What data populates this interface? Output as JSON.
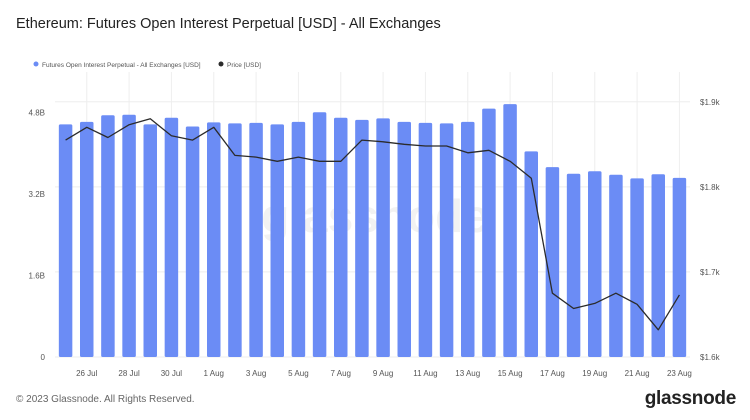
{
  "title": "Ethereum: Futures Open Interest Perpetual [USD] - All Exchanges",
  "footer": {
    "copyright": "© 2023 Glassnode. All Rights Reserved.",
    "brand": "glassnode"
  },
  "watermark": "glassnode",
  "colors": {
    "bars": "#6b8cf5",
    "price": "#2b2b2b",
    "grid": "#eeeeee",
    "axis_text": "#555555"
  },
  "chart_data": {
    "type": "bar+line",
    "categories": [
      "25 Jul",
      "26 Jul",
      "27 Jul",
      "28 Jul",
      "29 Jul",
      "30 Jul",
      "31 Jul",
      "1 Aug",
      "2 Aug",
      "3 Aug",
      "4 Aug",
      "5 Aug",
      "6 Aug",
      "7 Aug",
      "8 Aug",
      "9 Aug",
      "10 Aug",
      "11 Aug",
      "12 Aug",
      "13 Aug",
      "14 Aug",
      "15 Aug",
      "16 Aug",
      "17 Aug",
      "18 Aug",
      "19 Aug",
      "20 Aug",
      "21 Aug",
      "22 Aug",
      "23 Aug"
    ],
    "x_tick_labels": [
      "26 Jul",
      "28 Jul",
      "30 Jul",
      "1 Aug",
      "3 Aug",
      "5 Aug",
      "7 Aug",
      "9 Aug",
      "11 Aug",
      "13 Aug",
      "15 Aug",
      "17 Aug",
      "19 Aug",
      "21 Aug",
      "23 Aug"
    ],
    "series": [
      {
        "name": "Futures Open Interest Perpetual - All Exchanges [USD]",
        "axis": "left",
        "kind": "bar",
        "values": [
          4.57,
          4.62,
          4.75,
          4.76,
          4.57,
          4.7,
          4.53,
          4.61,
          4.59,
          4.6,
          4.57,
          4.62,
          4.81,
          4.7,
          4.66,
          4.69,
          4.62,
          4.6,
          4.59,
          4.62,
          4.88,
          4.97,
          4.04,
          3.73,
          3.6,
          3.65,
          3.58,
          3.51,
          3.59,
          3.52
        ]
      },
      {
        "name": "Price [USD]",
        "axis": "right",
        "kind": "line",
        "values": [
          1855,
          1870,
          1858,
          1873,
          1880,
          1860,
          1855,
          1870,
          1837,
          1835,
          1830,
          1835,
          1830,
          1830,
          1855,
          1853,
          1850,
          1848,
          1848,
          1840,
          1843,
          1830,
          1810,
          1675,
          1657,
          1663,
          1675,
          1662,
          1632,
          1673
        ]
      }
    ],
    "y_left": {
      "ticks": [
        0,
        1.6,
        3.2,
        4.8
      ],
      "tick_labels": [
        "0",
        "1.6B",
        "3.2B",
        "4.8B"
      ],
      "lim": [
        0,
        5.6
      ]
    },
    "y_right": {
      "ticks": [
        1600,
        1700,
        1800,
        1900
      ],
      "tick_labels": [
        "$1.6k",
        "$1.7k",
        "$1.8k",
        "$1.9k"
      ],
      "lim": [
        1600,
        1935
      ]
    },
    "grid": true,
    "legend": "top-left"
  }
}
